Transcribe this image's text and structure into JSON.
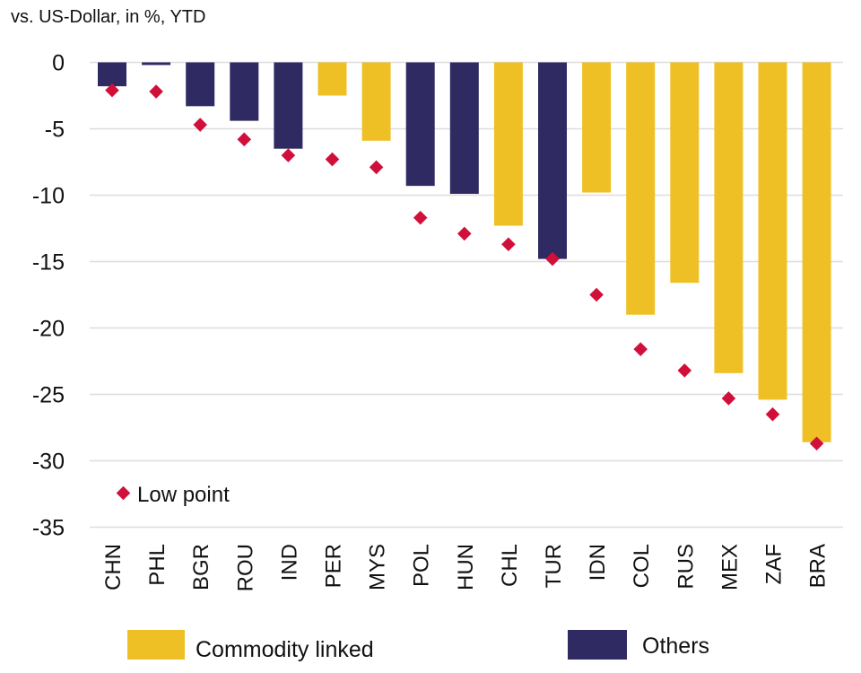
{
  "chart_data": {
    "type": "bar",
    "subtitle": "vs. US-Dollar, in %, YTD",
    "categories": [
      "CHN",
      "PHL",
      "BGR",
      "ROU",
      "IND",
      "PER",
      "MYS",
      "POL",
      "HUN",
      "CHL",
      "TUR",
      "IDN",
      "COL",
      "RUS",
      "MEX",
      "ZAF",
      "BRA"
    ],
    "groups": [
      "Others",
      "Others",
      "Others",
      "Others",
      "Others",
      "Commodity linked",
      "Commodity linked",
      "Others",
      "Others",
      "Commodity linked",
      "Others",
      "Commodity linked",
      "Commodity linked",
      "Commodity linked",
      "Commodity linked",
      "Commodity linked",
      "Commodity linked"
    ],
    "series": [
      {
        "name": "YTD",
        "values": [
          -1.8,
          -0.2,
          -3.3,
          -4.4,
          -6.5,
          -2.5,
          -5.9,
          -9.3,
          -9.9,
          -12.3,
          -14.8,
          -9.8,
          -19.0,
          -16.6,
          -23.4,
          -25.4,
          -28.6
        ]
      },
      {
        "name": "Low point",
        "type": "scatter",
        "values": [
          -2.1,
          -2.2,
          -4.7,
          -5.8,
          -7.0,
          -7.3,
          -7.9,
          -11.7,
          -12.9,
          -13.7,
          -14.8,
          -17.5,
          -21.6,
          -23.2,
          -25.3,
          -26.5,
          -28.7
        ]
      }
    ],
    "yticks": [
      0,
      -5,
      -10,
      -15,
      -20,
      -25,
      -30,
      -35
    ],
    "ylim": [
      -35,
      0
    ],
    "grid": true,
    "legend": {
      "low_point": "Low point",
      "commodity": "Commodity linked",
      "others": "Others",
      "placement": "bottom"
    },
    "colors": {
      "Commodity linked": "#efc025",
      "Others": "#2f2a62",
      "Low point": "#d0103a",
      "grid": "#dddddd"
    }
  }
}
